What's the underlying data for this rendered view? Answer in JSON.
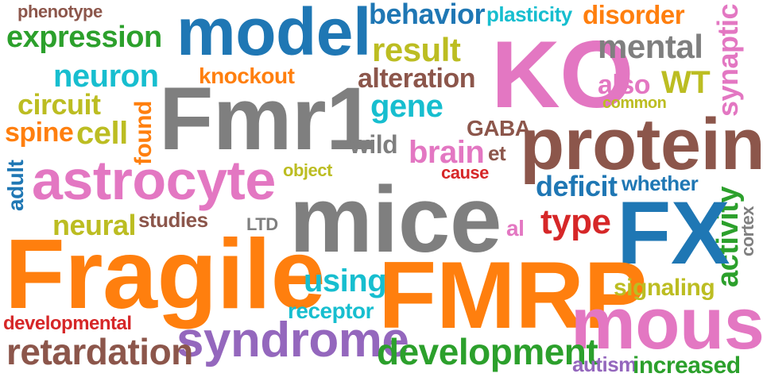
{
  "colors": {
    "gray": "#7f7f7f",
    "blue": "#1f77b4",
    "orange": "#ff7f0e",
    "pink": "#e377c2",
    "brown": "#8c564b",
    "green": "#2ca02c",
    "olive": "#bcbd22",
    "cyan": "#17becf",
    "red": "#d62728",
    "purple": "#9467bd"
  },
  "words": [
    "phenotype",
    "expression",
    "model",
    "behavior",
    "plasticity",
    "disorder",
    "synaptic",
    "KO",
    "mental",
    "result",
    "neuron",
    "knockout",
    "alteration",
    "also",
    "WT",
    "common",
    "circuit",
    "gene",
    "Fmr1",
    "found",
    "spine",
    "cell",
    "GABA",
    "protein",
    "wild",
    "brain",
    "et",
    "adult",
    "astrocyte",
    "object",
    "cause",
    "deficit",
    "whether",
    "activity",
    "cortex",
    "neural",
    "studies",
    "LTD",
    "mice",
    "type",
    "al",
    "FX",
    "Fragile",
    "using",
    "FMRP",
    "signaling",
    "receptor",
    "developmental",
    "mouse",
    "syndrome",
    "retardation",
    "development",
    "autism",
    "increased"
  ]
}
